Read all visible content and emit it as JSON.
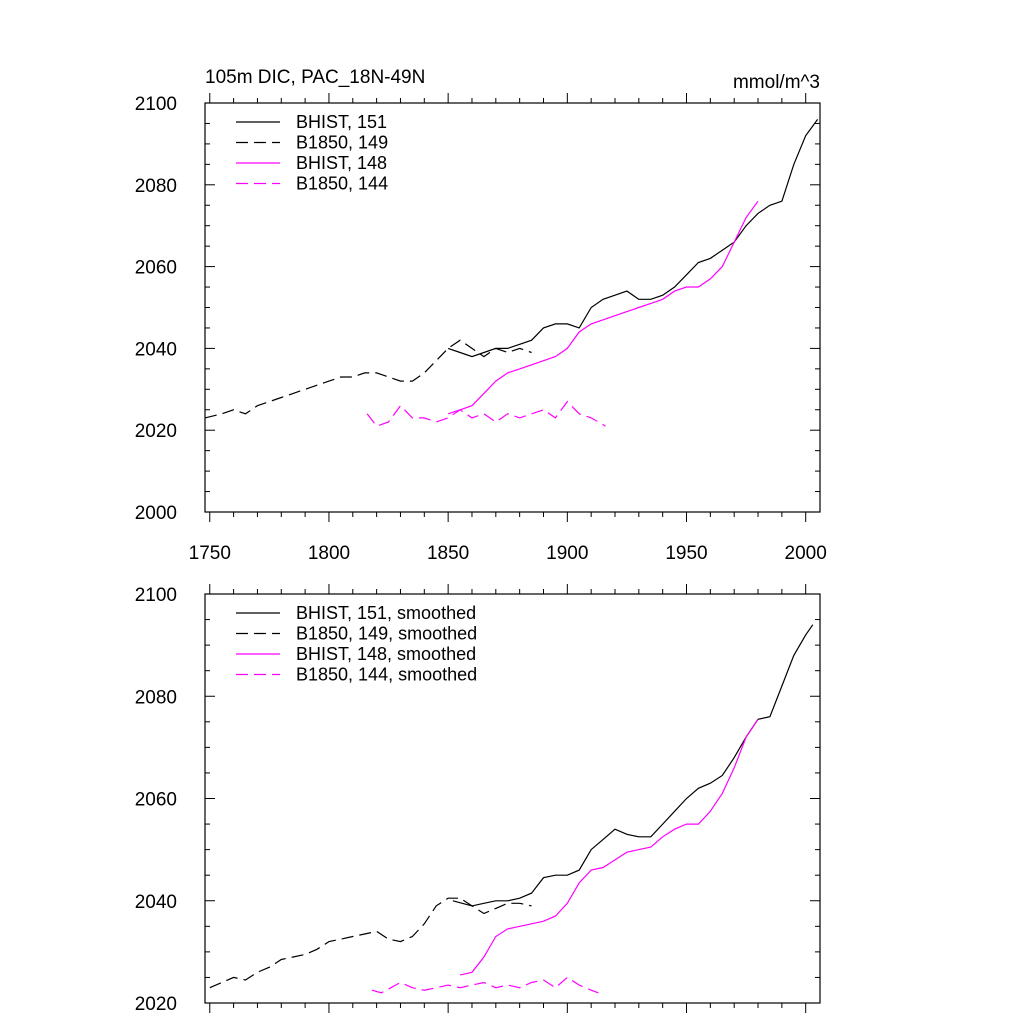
{
  "chart_data": [
    {
      "type": "line",
      "title": "105m DIC, PAC_18N-49N",
      "units": "mmol/m^3",
      "xlim": [
        1748,
        2006
      ],
      "ylim": [
        2000,
        2100
      ],
      "xticks": [
        1750,
        1800,
        1850,
        1900,
        1950,
        2000
      ],
      "yticks": [
        2000,
        2020,
        2040,
        2060,
        2080,
        2100
      ],
      "xtick_labels": [
        "1750",
        "1800",
        "1850",
        "1900",
        "1950",
        "2000"
      ],
      "ytick_labels": [
        "2000",
        "2020",
        "2040",
        "2060",
        "2080",
        "2100"
      ],
      "legend_position": "top-left",
      "series": [
        {
          "name": "BHIST, 151",
          "color": "#000000",
          "dash": "solid",
          "x": [
            1850,
            1855,
            1860,
            1865,
            1870,
            1875,
            1880,
            1885,
            1890,
            1895,
            1900,
            1905,
            1910,
            1915,
            1920,
            1925,
            1930,
            1935,
            1940,
            1945,
            1950,
            1955,
            1960,
            1965,
            1970,
            1975,
            1980,
            1985,
            1990,
            1995,
            2000,
            2005
          ],
          "y": [
            2040,
            2039,
            2038,
            2039,
            2040,
            2040,
            2041,
            2042,
            2045,
            2046,
            2046,
            2045,
            2050,
            2052,
            2053,
            2054,
            2052,
            2052,
            2053,
            2055,
            2058,
            2061,
            2062,
            2064,
            2066,
            2070,
            2073,
            2075,
            2076,
            2085,
            2092,
            2096
          ]
        },
        {
          "name": "B1850, 149",
          "color": "#000000",
          "dash": "dashed",
          "x": [
            1748,
            1755,
            1760,
            1765,
            1770,
            1775,
            1780,
            1785,
            1790,
            1795,
            1800,
            1805,
            1810,
            1815,
            1820,
            1825,
            1830,
            1835,
            1840,
            1845,
            1850,
            1855,
            1860,
            1865,
            1870,
            1875,
            1880,
            1885
          ],
          "y": [
            2023,
            2024,
            2025,
            2024,
            2026,
            2027,
            2028,
            2029,
            2030,
            2031,
            2032,
            2033,
            2033,
            2034,
            2034,
            2033,
            2032,
            2032,
            2034,
            2037,
            2040,
            2042,
            2040,
            2038,
            2040,
            2039,
            2040,
            2039
          ]
        },
        {
          "name": "BHIST, 148",
          "color": "#ff00ff",
          "dash": "solid",
          "x": [
            1850,
            1855,
            1860,
            1865,
            1870,
            1875,
            1880,
            1885,
            1890,
            1895,
            1900,
            1905,
            1910,
            1915,
            1920,
            1925,
            1930,
            1935,
            1940,
            1945,
            1950,
            1955,
            1960,
            1965,
            1970,
            1975,
            1980
          ],
          "y": [
            2024,
            2025,
            2026,
            2029,
            2032,
            2034,
            2035,
            2036,
            2037,
            2038,
            2040,
            2044,
            2046,
            2047,
            2048,
            2049,
            2050,
            2051,
            2052,
            2054,
            2055,
            2055,
            2057,
            2060,
            2066,
            2072,
            2076
          ]
        },
        {
          "name": "B1850, 144",
          "color": "#ff00ff",
          "dash": "dashed",
          "x": [
            1816,
            1820,
            1825,
            1830,
            1835,
            1840,
            1845,
            1850,
            1855,
            1860,
            1865,
            1870,
            1875,
            1880,
            1885,
            1890,
            1895,
            1900,
            1905,
            1910,
            1916
          ],
          "y": [
            2024,
            2021,
            2022,
            2026,
            2023,
            2023,
            2022,
            2023,
            2025,
            2023,
            2024,
            2022,
            2024,
            2023,
            2024,
            2025,
            2023,
            2027,
            2024,
            2023,
            2021
          ]
        }
      ]
    },
    {
      "type": "line",
      "title": "",
      "units": "",
      "xlim": [
        1748,
        2006
      ],
      "ylim": [
        2020,
        2100
      ],
      "xticks": [
        1750,
        1800,
        1850,
        1900,
        1950,
        2000
      ],
      "yticks": [
        2020,
        2040,
        2060,
        2080,
        2100
      ],
      "xtick_labels": [],
      "ytick_labels": [
        "2020",
        "2040",
        "2060",
        "2080",
        "2100"
      ],
      "legend_position": "top-left",
      "series": [
        {
          "name": "BHIST, 151, smoothed",
          "color": "#000000",
          "dash": "solid",
          "x": [
            1852,
            1860,
            1865,
            1870,
            1875,
            1880,
            1885,
            1890,
            1895,
            1900,
            1905,
            1910,
            1915,
            1920,
            1925,
            1930,
            1935,
            1940,
            1945,
            1950,
            1955,
            1960,
            1965,
            1970,
            1975,
            1980,
            1985,
            1990,
            1995,
            2000,
            2003
          ],
          "y": [
            2040,
            2039,
            2039.5,
            2040,
            2040,
            2040.5,
            2041.5,
            2044.5,
            2045,
            2045,
            2046,
            2050,
            2052,
            2054,
            2053,
            2052.5,
            2052.5,
            2055,
            2057.5,
            2060,
            2062,
            2063,
            2064.5,
            2068,
            2072,
            2075.5,
            2076,
            2082,
            2088,
            2092,
            2094
          ]
        },
        {
          "name": "B1850, 149, smoothed",
          "color": "#000000",
          "dash": "dashed",
          "x": [
            1750,
            1755,
            1760,
            1765,
            1770,
            1775,
            1780,
            1785,
            1790,
            1795,
            1800,
            1805,
            1810,
            1815,
            1820,
            1825,
            1830,
            1835,
            1840,
            1845,
            1850,
            1855,
            1860,
            1865,
            1870,
            1875,
            1880,
            1885
          ],
          "y": [
            2023,
            2024,
            2025,
            2024.5,
            2026,
            2027,
            2028.5,
            2029,
            2029.5,
            2030.5,
            2032,
            2032.5,
            2033,
            2033.5,
            2034,
            2032.5,
            2032,
            2033,
            2035.5,
            2039,
            2040.5,
            2040.5,
            2039,
            2037.5,
            2038.5,
            2039.5,
            2039.5,
            2039
          ]
        },
        {
          "name": "BHIST, 148, smoothed",
          "color": "#ff00ff",
          "dash": "solid",
          "x": [
            1855,
            1860,
            1865,
            1870,
            1875,
            1880,
            1885,
            1890,
            1895,
            1900,
            1905,
            1910,
            1915,
            1920,
            1925,
            1930,
            1935,
            1940,
            1945,
            1950,
            1955,
            1960,
            1965,
            1970,
            1975,
            1980
          ],
          "y": [
            2025.5,
            2026,
            2029,
            2033,
            2034.5,
            2035,
            2035.5,
            2036,
            2037,
            2039.5,
            2043.5,
            2046,
            2046.5,
            2048,
            2049.5,
            2050,
            2050.5,
            2052.5,
            2054,
            2055,
            2055,
            2057.5,
            2061,
            2066,
            2072,
            2075.5
          ]
        },
        {
          "name": "B1850, 144, smoothed",
          "color": "#ff00ff",
          "dash": "dashed",
          "x": [
            1818,
            1822,
            1826,
            1830,
            1835,
            1840,
            1845,
            1850,
            1855,
            1860,
            1865,
            1870,
            1875,
            1880,
            1885,
            1890,
            1895,
            1900,
            1905,
            1910,
            1913
          ],
          "y": [
            2022.5,
            2022,
            2023,
            2024,
            2023,
            2022.5,
            2023,
            2023.5,
            2023,
            2023.5,
            2024,
            2023,
            2023.5,
            2023,
            2024,
            2024.5,
            2023,
            2025,
            2023.5,
            2022.5,
            2022
          ]
        }
      ]
    }
  ]
}
